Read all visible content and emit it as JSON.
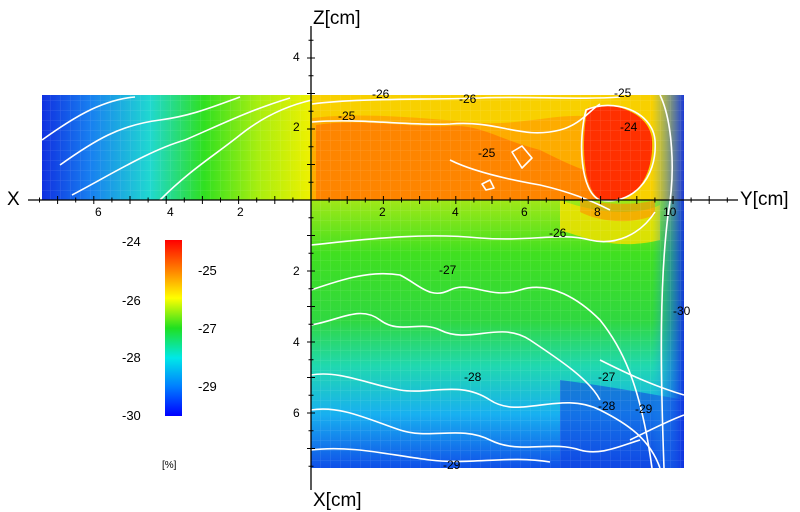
{
  "chart_data": {
    "type": "heatmap",
    "title": "",
    "axis_names": {
      "x_left": "X",
      "y_right": "Y[cm]",
      "z_top": "Z[cm]",
      "x_bottom": "X[cm]"
    },
    "y_axis_ticks": [
      "2",
      "4",
      "6",
      "8",
      "10"
    ],
    "x_left_axis_ticks": [
      "2",
      "4",
      "6"
    ],
    "z_axis_ticks": [
      "2",
      "4"
    ],
    "x_down_axis_ticks": [
      "2",
      "4",
      "6"
    ],
    "colorbar": {
      "unit": "[%]",
      "range": [
        -30,
        -24
      ],
      "colormap": "jet",
      "ticks_left": [
        "-24",
        "-26",
        "-28",
        "-30"
      ],
      "ticks_right": [
        "-25",
        "-27",
        "-29"
      ]
    },
    "contour_labels": [
      {
        "value": "-26",
        "y_cm": 2.0,
        "z_cm": 2.9
      },
      {
        "value": "-26",
        "y_cm": 4.4,
        "z_cm": 2.8
      },
      {
        "value": "-25",
        "y_cm": 8.7,
        "z_cm": 2.9
      },
      {
        "value": "-25",
        "y_cm": 1.0,
        "z_cm": 2.2
      },
      {
        "value": "-24",
        "y_cm": 8.7,
        "z_cm": 1.9
      },
      {
        "value": "-25",
        "y_cm": 4.9,
        "z_cm": 1.2
      },
      {
        "value": "-26",
        "y_cm": 6.9,
        "x_cm": 0.9
      },
      {
        "value": "-27",
        "y_cm": 3.9,
        "x_cm": 2.0
      },
      {
        "value": "-30",
        "y_cm": 10.3,
        "x_cm": 3.1
      },
      {
        "value": "-28",
        "y_cm": 4.6,
        "x_cm": 4.9
      },
      {
        "value": "-27",
        "y_cm": 8.1,
        "x_cm": 4.9
      },
      {
        "value": "-28",
        "y_cm": 8.1,
        "x_cm": 6.0
      },
      {
        "value": "-29",
        "y_cm": 9.3,
        "x_cm": 6.1
      },
      {
        "value": "-29",
        "y_cm": 4.0,
        "x_cm": 7.7
      }
    ],
    "grid": false,
    "legend": "colorbar left"
  }
}
